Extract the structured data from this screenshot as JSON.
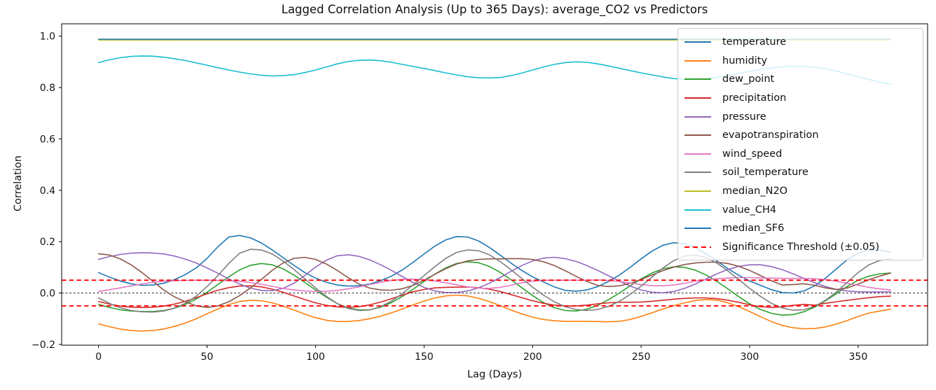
{
  "chart_data": {
    "type": "line",
    "title": "Lagged Correlation Analysis (Up to 365 Days): average_CO2 vs Predictors",
    "xlabel": "Lag (Days)",
    "ylabel": "Correlation",
    "xlim": [
      -17,
      382
    ],
    "ylim": [
      -0.203,
      1.048
    ],
    "grid": false,
    "legend_position": "upper right",
    "xticks": {
      "values": [
        0,
        50,
        100,
        150,
        200,
        250,
        300,
        350
      ],
      "labels": [
        "0",
        "50",
        "100",
        "150",
        "200",
        "250",
        "300",
        "350"
      ]
    },
    "yticks": {
      "values": [
        1.0,
        0.8,
        0.6,
        0.4,
        0.2,
        0.0,
        -0.2
      ],
      "labels": [
        "1.0",
        "0.8",
        "0.6",
        "0.4",
        "0.2",
        "0.0",
        "−0.2"
      ]
    },
    "zero_line": {
      "value": 0.0,
      "color": "#000000",
      "style": "dashed"
    },
    "threshold": {
      "label": "Significance Threshold (±0.05)",
      "value": 0.05,
      "color": "#ff0000",
      "style": "dashed"
    },
    "x": [
      0,
      5,
      10,
      15,
      20,
      25,
      30,
      35,
      40,
      45,
      50,
      55,
      60,
      65,
      70,
      75,
      80,
      85,
      90,
      95,
      100,
      105,
      110,
      115,
      120,
      125,
      130,
      135,
      140,
      145,
      150,
      155,
      160,
      165,
      170,
      175,
      180,
      185,
      190,
      195,
      200,
      205,
      210,
      215,
      220,
      225,
      230,
      235,
      240,
      245,
      250,
      255,
      260,
      265,
      270,
      275,
      280,
      285,
      290,
      295,
      300,
      305,
      310,
      315,
      320,
      325,
      330,
      335,
      340,
      345,
      350,
      355,
      360,
      365
    ],
    "series": [
      {
        "name": "temperature",
        "color": "#1f77b4",
        "values": [
          0.08,
          0.062,
          0.047,
          0.036,
          0.03,
          0.031,
          0.038,
          0.052,
          0.072,
          0.098,
          0.135,
          0.18,
          0.218,
          0.224,
          0.215,
          0.195,
          0.168,
          0.138,
          0.108,
          0.08,
          0.058,
          0.042,
          0.031,
          0.027,
          0.028,
          0.035,
          0.048,
          0.066,
          0.09,
          0.12,
          0.152,
          0.183,
          0.207,
          0.22,
          0.218,
          0.203,
          0.178,
          0.148,
          0.117,
          0.088,
          0.063,
          0.043,
          0.024,
          0.01,
          0.007,
          0.012,
          0.025,
          0.045,
          0.07,
          0.1,
          0.133,
          0.163,
          0.186,
          0.196,
          0.192,
          0.176,
          0.152,
          0.124,
          0.095,
          0.069,
          0.047,
          0.03,
          0.013,
          0.002,
          0.0,
          0.008,
          0.028,
          0.058,
          0.094,
          0.13,
          0.155,
          0.168,
          0.168,
          0.158
        ]
      },
      {
        "name": "humidity",
        "color": "#ff7f0e",
        "values": [
          -0.12,
          -0.131,
          -0.14,
          -0.146,
          -0.148,
          -0.146,
          -0.14,
          -0.13,
          -0.117,
          -0.1,
          -0.081,
          -0.062,
          -0.045,
          -0.033,
          -0.028,
          -0.03,
          -0.038,
          -0.051,
          -0.066,
          -0.082,
          -0.096,
          -0.106,
          -0.111,
          -0.111,
          -0.107,
          -0.1,
          -0.09,
          -0.077,
          -0.062,
          -0.046,
          -0.031,
          -0.019,
          -0.011,
          -0.008,
          -0.011,
          -0.02,
          -0.033,
          -0.049,
          -0.066,
          -0.081,
          -0.094,
          -0.103,
          -0.108,
          -0.11,
          -0.11,
          -0.11,
          -0.111,
          -0.112,
          -0.11,
          -0.103,
          -0.091,
          -0.077,
          -0.062,
          -0.049,
          -0.038,
          -0.029,
          -0.025,
          -0.028,
          -0.038,
          -0.053,
          -0.072,
          -0.092,
          -0.111,
          -0.126,
          -0.135,
          -0.139,
          -0.138,
          -0.132,
          -0.121,
          -0.107,
          -0.091,
          -0.078,
          -0.07,
          -0.063
        ]
      },
      {
        "name": "dew_point",
        "color": "#2ca02c",
        "values": [
          -0.044,
          -0.056,
          -0.065,
          -0.07,
          -0.072,
          -0.072,
          -0.068,
          -0.059,
          -0.044,
          -0.023,
          0.003,
          0.033,
          0.063,
          0.09,
          0.108,
          0.115,
          0.11,
          0.094,
          0.07,
          0.042,
          0.012,
          -0.016,
          -0.041,
          -0.058,
          -0.066,
          -0.065,
          -0.055,
          -0.037,
          -0.013,
          0.015,
          0.045,
          0.074,
          0.098,
          0.115,
          0.122,
          0.118,
          0.104,
          0.081,
          0.052,
          0.021,
          -0.01,
          -0.037,
          -0.057,
          -0.068,
          -0.07,
          -0.063,
          -0.048,
          -0.026,
          0.0,
          0.028,
          0.055,
          0.078,
          0.094,
          0.102,
          0.1,
          0.089,
          0.07,
          0.045,
          0.016,
          -0.014,
          -0.042,
          -0.064,
          -0.079,
          -0.086,
          -0.084,
          -0.073,
          -0.055,
          -0.03,
          -0.002,
          0.026,
          0.05,
          0.066,
          0.075,
          0.078
        ]
      },
      {
        "name": "precipitation",
        "color": "#d62728",
        "values": [
          -0.033,
          -0.043,
          -0.051,
          -0.055,
          -0.056,
          -0.055,
          -0.051,
          -0.043,
          -0.032,
          -0.018,
          -0.003,
          0.011,
          0.021,
          0.027,
          0.028,
          0.024,
          0.015,
          0.003,
          -0.011,
          -0.025,
          -0.038,
          -0.048,
          -0.054,
          -0.056,
          -0.053,
          -0.046,
          -0.035,
          -0.022,
          -0.008,
          0.005,
          0.014,
          0.02,
          0.022,
          0.023,
          0.023,
          0.021,
          0.015,
          0.006,
          -0.006,
          -0.018,
          -0.03,
          -0.04,
          -0.047,
          -0.05,
          -0.05,
          -0.047,
          -0.042,
          -0.038,
          -0.036,
          -0.036,
          -0.035,
          -0.032,
          -0.028,
          -0.024,
          -0.021,
          -0.019,
          -0.019,
          -0.022,
          -0.028,
          -0.036,
          -0.046,
          -0.053,
          -0.056,
          -0.054,
          -0.048,
          -0.044,
          -0.047,
          -0.04,
          -0.034,
          -0.028,
          -0.023,
          -0.018,
          -0.014,
          -0.012
        ]
      },
      {
        "name": "pressure",
        "color": "#9467bd",
        "values": [
          0.131,
          0.142,
          0.15,
          0.155,
          0.157,
          0.156,
          0.152,
          0.144,
          0.132,
          0.117,
          0.098,
          0.077,
          0.055,
          0.035,
          0.019,
          0.01,
          0.009,
          0.018,
          0.038,
          0.068,
          0.101,
          0.128,
          0.145,
          0.149,
          0.143,
          0.129,
          0.11,
          0.088,
          0.064,
          0.041,
          0.022,
          0.008,
          0.002,
          0.002,
          0.008,
          0.02,
          0.038,
          0.06,
          0.084,
          0.107,
          0.125,
          0.136,
          0.139,
          0.134,
          0.123,
          0.107,
          0.088,
          0.067,
          0.046,
          0.027,
          0.012,
          0.003,
          0.001,
          0.006,
          0.018,
          0.035,
          0.055,
          0.075,
          0.092,
          0.104,
          0.11,
          0.11,
          0.103,
          0.091,
          0.075,
          0.057,
          0.04,
          0.025,
          0.014,
          0.008,
          0.005,
          0.004,
          0.004,
          0.005
        ]
      },
      {
        "name": "evapotranspiration",
        "color": "#8c564b",
        "values": [
          0.153,
          0.148,
          0.133,
          0.11,
          0.08,
          0.046,
          0.012,
          -0.015,
          -0.034,
          -0.05,
          -0.056,
          -0.05,
          -0.034,
          -0.01,
          0.02,
          0.053,
          0.088,
          0.117,
          0.135,
          0.139,
          0.131,
          0.113,
          0.088,
          0.06,
          0.035,
          0.019,
          0.012,
          0.011,
          0.017,
          0.03,
          0.05,
          0.073,
          0.095,
          0.113,
          0.125,
          0.131,
          0.133,
          0.133,
          0.134,
          0.134,
          0.131,
          0.122,
          0.107,
          0.087,
          0.065,
          0.045,
          0.03,
          0.025,
          0.028,
          0.038,
          0.053,
          0.07,
          0.087,
          0.101,
          0.111,
          0.117,
          0.12,
          0.12,
          0.115,
          0.104,
          0.088,
          0.068,
          0.048,
          0.031,
          0.033,
          0.036,
          0.03,
          0.02,
          0.014,
          0.02,
          0.035,
          0.052,
          0.066,
          0.078
        ]
      },
      {
        "name": "wind_speed",
        "color": "#e377c2",
        "values": [
          0.006,
          0.013,
          0.02,
          0.028,
          0.035,
          0.042,
          0.046,
          0.048,
          0.049,
          0.05,
          0.05,
          0.049,
          0.048,
          0.046,
          0.041,
          0.034,
          0.026,
          0.018,
          0.012,
          0.008,
          0.006,
          0.007,
          0.01,
          0.016,
          0.024,
          0.033,
          0.042,
          0.049,
          0.053,
          0.054,
          0.052,
          0.047,
          0.04,
          0.032,
          0.024,
          0.019,
          0.018,
          0.022,
          0.03,
          0.04,
          0.046,
          0.049,
          0.05,
          0.05,
          0.05,
          0.05,
          0.051,
          0.049,
          0.045,
          0.039,
          0.033,
          0.029,
          0.028,
          0.031,
          0.038,
          0.046,
          0.052,
          0.056,
          0.058,
          0.06,
          0.06,
          0.059,
          0.058,
          0.057,
          0.057,
          0.057,
          0.056,
          0.052,
          0.046,
          0.038,
          0.03,
          0.022,
          0.016,
          0.012
        ]
      },
      {
        "name": "soil_temperature",
        "color": "#7f7f7f",
        "values": [
          -0.019,
          -0.04,
          -0.057,
          -0.068,
          -0.073,
          -0.074,
          -0.07,
          -0.059,
          -0.04,
          -0.012,
          0.025,
          0.068,
          0.115,
          0.155,
          0.17,
          0.168,
          0.152,
          0.125,
          0.092,
          0.056,
          0.02,
          -0.013,
          -0.041,
          -0.06,
          -0.068,
          -0.066,
          -0.053,
          -0.031,
          -0.002,
          0.032,
          0.068,
          0.103,
          0.135,
          0.158,
          0.168,
          0.165,
          0.149,
          0.123,
          0.091,
          0.057,
          0.023,
          -0.008,
          -0.034,
          -0.053,
          -0.064,
          -0.068,
          -0.064,
          -0.052,
          -0.032,
          -0.005,
          0.027,
          0.062,
          0.097,
          0.126,
          0.144,
          0.148,
          0.138,
          0.116,
          0.086,
          0.052,
          0.018,
          -0.013,
          -0.04,
          -0.058,
          -0.067,
          -0.065,
          -0.052,
          -0.028,
          0.004,
          0.042,
          0.08,
          0.11,
          0.127,
          0.134
        ]
      },
      {
        "name": "median_N2O",
        "color": "#bcbd22",
        "values": [
          0.985,
          0.985,
          0.985,
          0.985,
          0.985,
          0.985,
          0.985,
          0.985,
          0.985,
          0.985,
          0.985,
          0.985,
          0.985,
          0.985,
          0.985,
          0.985,
          0.985,
          0.985,
          0.985,
          0.985,
          0.985,
          0.985,
          0.985,
          0.985,
          0.985,
          0.985,
          0.985,
          0.985,
          0.985,
          0.985,
          0.985,
          0.985,
          0.985,
          0.985,
          0.985,
          0.985,
          0.985,
          0.985,
          0.985,
          0.985,
          0.985,
          0.985,
          0.985,
          0.985,
          0.985,
          0.985,
          0.985,
          0.985,
          0.985,
          0.985,
          0.985,
          0.985,
          0.985,
          0.985,
          0.985,
          0.985,
          0.985,
          0.985,
          0.985,
          0.985,
          0.985,
          0.985,
          0.985,
          0.985,
          0.985,
          0.985,
          0.985,
          0.985,
          0.985,
          0.985,
          0.985,
          0.985,
          0.985,
          0.985
        ]
      },
      {
        "name": "value_CH4",
        "color": "#17becf",
        "values": [
          0.897,
          0.908,
          0.916,
          0.921,
          0.923,
          0.922,
          0.918,
          0.912,
          0.905,
          0.896,
          0.887,
          0.877,
          0.868,
          0.86,
          0.853,
          0.848,
          0.845,
          0.846,
          0.85,
          0.858,
          0.868,
          0.88,
          0.892,
          0.901,
          0.906,
          0.907,
          0.904,
          0.898,
          0.89,
          0.882,
          0.874,
          0.866,
          0.857,
          0.849,
          0.842,
          0.838,
          0.837,
          0.839,
          0.846,
          0.856,
          0.868,
          0.88,
          0.89,
          0.897,
          0.9,
          0.898,
          0.892,
          0.884,
          0.875,
          0.866,
          0.857,
          0.849,
          0.841,
          0.835,
          0.832,
          0.832,
          0.835,
          0.84,
          0.847,
          0.855,
          0.863,
          0.87,
          0.876,
          0.88,
          0.882,
          0.882,
          0.879,
          0.873,
          0.864,
          0.853,
          0.842,
          0.831,
          0.821,
          0.814
        ]
      },
      {
        "name": "median_SF6",
        "color": "#1f77b4",
        "values": [
          0.988,
          0.988,
          0.988,
          0.988,
          0.988,
          0.988,
          0.988,
          0.988,
          0.988,
          0.988,
          0.988,
          0.988,
          0.988,
          0.988,
          0.988,
          0.988,
          0.988,
          0.988,
          0.988,
          0.988,
          0.988,
          0.988,
          0.988,
          0.988,
          0.988,
          0.988,
          0.988,
          0.988,
          0.988,
          0.988,
          0.988,
          0.988,
          0.988,
          0.988,
          0.988,
          0.988,
          0.988,
          0.988,
          0.988,
          0.988,
          0.988,
          0.988,
          0.988,
          0.988,
          0.988,
          0.988,
          0.988,
          0.988,
          0.988,
          0.988,
          0.988,
          0.988,
          0.988,
          0.988,
          0.988,
          0.988,
          0.988,
          0.988,
          0.988,
          0.988,
          0.988,
          0.988,
          0.988,
          0.988,
          0.988,
          0.988,
          0.988,
          0.988,
          0.988,
          0.988,
          0.988,
          0.988,
          0.988,
          0.988
        ]
      }
    ]
  }
}
